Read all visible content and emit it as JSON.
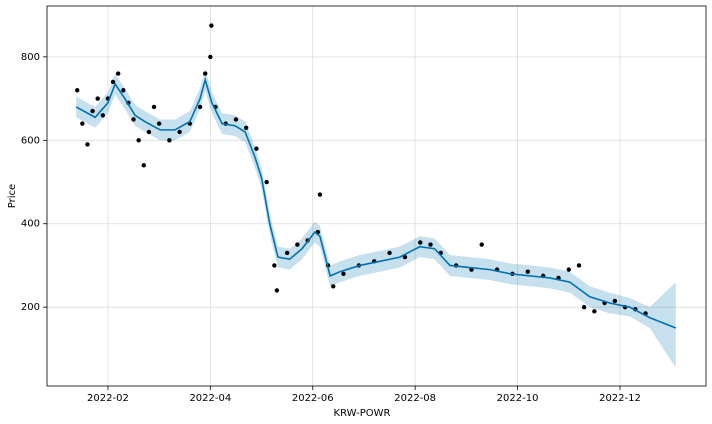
{
  "chart_data": {
    "type": "forecast",
    "xlabel": "KRW-POWR",
    "ylabel": "Price",
    "xlim": [
      0.81,
      13.68
    ],
    "ylim": [
      11,
      922
    ],
    "xticks": [
      {
        "value": 2,
        "label": "2022-02"
      },
      {
        "value": 4,
        "label": "2022-04"
      },
      {
        "value": 6,
        "label": "2022-06"
      },
      {
        "value": 8,
        "label": "2022-08"
      },
      {
        "value": 10,
        "label": "2022-10"
      },
      {
        "value": 12,
        "label": "2022-12"
      }
    ],
    "yticks": [
      200,
      400,
      600,
      800
    ],
    "grid": true,
    "interval": {
      "color": "#0072b2",
      "x": [
        1.38,
        1.75,
        2.0,
        2.14,
        2.33,
        2.53,
        2.72,
        3.02,
        3.31,
        3.6,
        3.8,
        3.9,
        4.03,
        4.23,
        4.48,
        4.68,
        4.87,
        5.0,
        5.16,
        5.32,
        5.55,
        5.79,
        6.04,
        6.14,
        6.34,
        6.53,
        6.92,
        7.31,
        7.7,
        8.09,
        8.38,
        8.68,
        9.07,
        9.46,
        9.85,
        10.24,
        10.63,
        11.02,
        11.41,
        11.8,
        12.19,
        12.58,
        13.09
      ],
      "lower": [
        655,
        630,
        665,
        710,
        675,
        635,
        620,
        600,
        600,
        620,
        675,
        720,
        665,
        615,
        610,
        595,
        535,
        485,
        375,
        295,
        290,
        315,
        355,
        345,
        250,
        260,
        275,
        285,
        295,
        320,
        315,
        275,
        270,
        265,
        255,
        250,
        245,
        235,
        200,
        185,
        178,
        150,
        55
      ],
      "upper": [
        705,
        680,
        715,
        760,
        725,
        685,
        670,
        650,
        650,
        670,
        725,
        770,
        715,
        665,
        660,
        645,
        585,
        535,
        425,
        345,
        340,
        365,
        405,
        395,
        300,
        310,
        325,
        335,
        345,
        370,
        365,
        325,
        320,
        315,
        305,
        300,
        295,
        285,
        250,
        235,
        222,
        200,
        260
      ]
    },
    "observed": {
      "color": "#000000",
      "x": [
        1.4,
        1.5,
        1.6,
        1.7,
        1.8,
        1.9,
        2.0,
        2.1,
        2.2,
        2.3,
        2.4,
        2.5,
        2.6,
        2.7,
        2.8,
        2.9,
        3.0,
        3.2,
        3.4,
        3.6,
        3.8,
        3.9,
        4.0,
        4.02,
        4.1,
        4.3,
        4.5,
        4.7,
        4.9,
        5.1,
        5.25,
        5.3,
        5.5,
        5.7,
        5.9,
        6.1,
        6.14,
        6.3,
        6.4,
        6.6,
        6.9,
        7.2,
        7.5,
        7.8,
        8.1,
        8.3,
        8.5,
        8.8,
        9.1,
        9.3,
        9.6,
        9.9,
        10.2,
        10.5,
        10.8,
        11.0,
        11.2,
        11.3,
        11.5,
        11.7,
        11.9,
        12.1,
        12.3,
        12.5
      ],
      "values": [
        720,
        640,
        590,
        670,
        700,
        660,
        700,
        740,
        760,
        720,
        690,
        650,
        600,
        540,
        620,
        680,
        640,
        600,
        620,
        640,
        680,
        760,
        800,
        875,
        680,
        640,
        650,
        630,
        580,
        500,
        300,
        240,
        330,
        350,
        360,
        380,
        470,
        300,
        250,
        280,
        300,
        310,
        330,
        320,
        355,
        350,
        330,
        300,
        290,
        350,
        290,
        280,
        285,
        275,
        270,
        290,
        300,
        200,
        190,
        210,
        215,
        200,
        195,
        185
      ]
    },
    "forecast": {
      "color": "#0072b2",
      "x": [
        1.38,
        1.75,
        2.0,
        2.14,
        2.33,
        2.53,
        2.72,
        3.02,
        3.31,
        3.6,
        3.8,
        3.9,
        4.03,
        4.23,
        4.48,
        4.68,
        4.87,
        5.0,
        5.16,
        5.32,
        5.55,
        5.79,
        6.04,
        6.14,
        6.34,
        6.53,
        6.92,
        7.31,
        7.7,
        8.09,
        8.38,
        8.68,
        9.07,
        9.46,
        9.85,
        10.24,
        10.63,
        11.02,
        11.41,
        11.8,
        12.19,
        12.58,
        13.09
      ],
      "values": [
        680,
        655,
        690,
        735,
        700,
        660,
        645,
        625,
        625,
        645,
        700,
        745,
        690,
        640,
        635,
        620,
        560,
        510,
        400,
        320,
        315,
        340,
        380,
        370,
        275,
        285,
        300,
        310,
        320,
        345,
        340,
        300,
        295,
        290,
        280,
        275,
        270,
        260,
        225,
        210,
        200,
        175,
        150
      ]
    }
  }
}
